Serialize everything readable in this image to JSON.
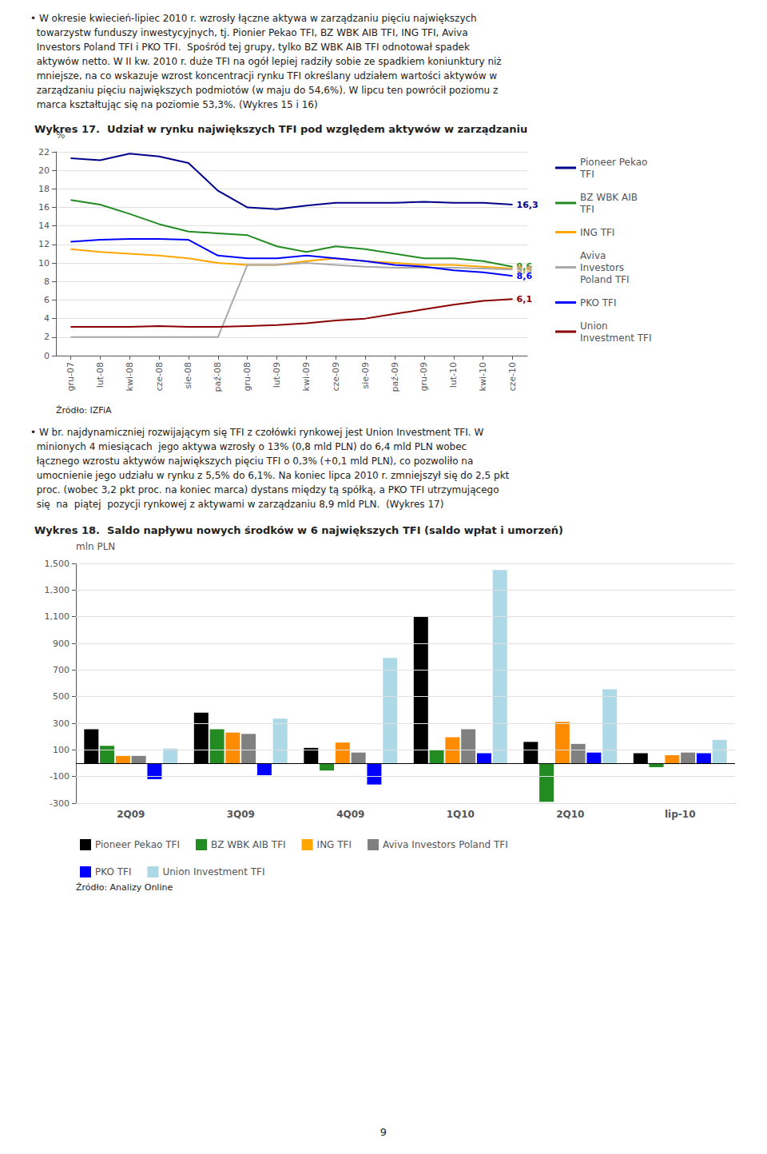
{
  "chart_data": [
    {
      "type": "line",
      "title": "Wykres 17.  Udział w rynku największych TFI pod względem aktywów w zarządzaniu",
      "ylabel": "%",
      "ylim": [
        0,
        22
      ],
      "yticks": [
        0,
        2,
        4,
        6,
        8,
        10,
        12,
        14,
        16,
        18,
        20,
        22
      ],
      "grid": true,
      "legend": "right",
      "categories": [
        "gru-07",
        "lut-08",
        "kwi-08",
        "cze-08",
        "sie-08",
        "paź-08",
        "gru-08",
        "lut-09",
        "kwi-09",
        "cze-09",
        "sie-09",
        "paź-09",
        "gru-09",
        "lut-10",
        "kwi-10",
        "cze-10"
      ],
      "series": [
        {
          "name": "Pioneer Pekao\nTFI",
          "color": "#00008B",
          "values": [
            21.3,
            21.1,
            21.8,
            21.5,
            20.8,
            17.8,
            16.0,
            15.8,
            16.2,
            16.5,
            16.5,
            16.5,
            16.6,
            16.5,
            16.5,
            16.3
          ],
          "value_labels": [
            null,
            null,
            null,
            null,
            null,
            null,
            null,
            null,
            null,
            null,
            null,
            null,
            null,
            null,
            null,
            "16,3"
          ]
        },
        {
          "name": "BZ WBK AIB\nTFI",
          "color": "#228B22",
          "values": [
            16.8,
            16.3,
            15.3,
            14.2,
            13.4,
            13.2,
            13.0,
            11.8,
            11.2,
            11.8,
            11.5,
            11.0,
            10.5,
            10.5,
            10.2,
            9.6
          ],
          "value_labels": [
            null,
            null,
            null,
            null,
            null,
            null,
            null,
            null,
            null,
            null,
            null,
            null,
            null,
            null,
            null,
            "9,6"
          ]
        },
        {
          "name": "ING TFI",
          "color": "#FFA500",
          "values": [
            11.5,
            11.2,
            11.0,
            10.8,
            10.5,
            10.0,
            9.8,
            9.8,
            10.2,
            10.5,
            10.2,
            10.0,
            9.8,
            9.8,
            9.6,
            9.4
          ],
          "value_labels": [
            null,
            null,
            null,
            null,
            null,
            null,
            null,
            null,
            null,
            null,
            null,
            null,
            null,
            null,
            null,
            "9,4"
          ]
        },
        {
          "name": "Aviva\nInvestors\nPoland TFI",
          "color": "#A9A9A9",
          "values": [
            2.0,
            2.0,
            2.0,
            2.0,
            2.0,
            2.0,
            9.8,
            9.8,
            10.0,
            9.8,
            9.6,
            9.5,
            9.5,
            9.5,
            9.4,
            9.3
          ],
          "value_labels": [
            null,
            null,
            null,
            null,
            null,
            null,
            null,
            null,
            null,
            null,
            null,
            null,
            null,
            null,
            null,
            "9,3"
          ]
        },
        {
          "name": "PKO TFI",
          "color": "#0000FF",
          "values": [
            12.3,
            12.5,
            12.6,
            12.6,
            12.5,
            10.8,
            10.5,
            10.5,
            10.8,
            10.5,
            10.2,
            9.8,
            9.6,
            9.2,
            9.0,
            8.6
          ],
          "value_labels": [
            null,
            null,
            null,
            null,
            null,
            null,
            null,
            null,
            null,
            null,
            null,
            null,
            null,
            null,
            null,
            "8,6"
          ]
        },
        {
          "name": "Union\nInvestment TFI",
          "color": "#8B0000",
          "values": [
            3.1,
            3.1,
            3.1,
            3.2,
            3.1,
            3.1,
            3.2,
            3.3,
            3.5,
            3.8,
            4.0,
            4.5,
            5.0,
            5.5,
            5.9,
            6.1
          ],
          "value_labels": [
            null,
            null,
            null,
            null,
            null,
            null,
            null,
            null,
            null,
            null,
            null,
            null,
            null,
            null,
            null,
            "6,1"
          ]
        }
      ],
      "annotations": [
        "• W okresie kwiecień-lipiec 2010 r. wzrosły łączne aktywa w zarządzaniu pięciu największych\n  towarzystw funduszy inwestycyjnych, tj. Pionier Pekao TFI, BZ WBK AIB TFI, ING TFI, Aviva\n  Investors Poland TFI i PKO TFI.  Spośród tej grupy, tylko BZ WBK AIB TFI odnotował spadek\n  aktywów netto. W II kw. 2010 r. duże TFI na ogół lepiej radziły sobie ze spadkiem koniunktury niż\n  mniejsze, na co wskazuje wzrost koncentracji rynku TFI określany udziałem wartości aktywów w\n  zarządzaniu pięciu największych podmiotów (w maju do 54,6%). W lipcu ten powrócił poziomu z\n  marca kształtując się na poziomie 53,3%. (Wykres 15 i 16)",
        "Źródło: IZFiA"
      ]
    },
    {
      "type": "bar",
      "title": "Wykres 18.  Saldo napływu nowych środków w 6 największych TFI (saldo wpłat i umorzeń)",
      "ylabel": "mln PLN",
      "ylim": [
        -300,
        1500
      ],
      "yticks": [
        -300,
        -100,
        100,
        300,
        500,
        700,
        900,
        1100,
        1300,
        1500
      ],
      "grid": true,
      "legend": "bottom",
      "categories": [
        "2Q09",
        "3Q09",
        "4Q09",
        "1Q10",
        "2Q10",
        "lip-10"
      ],
      "series": [
        {
          "name": "Pioneer Pekao TFI",
          "color": "#000000",
          "values": [
            255,
            380,
            115,
            1100,
            160,
            75
          ]
        },
        {
          "name": "BZ WBK AIB TFI",
          "color": "#228B22",
          "values": [
            130,
            255,
            -55,
            100,
            -290,
            -30
          ]
        },
        {
          "name": "ING TFI",
          "color": "#FF8C00",
          "values": [
            55,
            230,
            155,
            195,
            310,
            60
          ]
        },
        {
          "name": "Aviva Investors Poland TFI",
          "color": "#808080",
          "values": [
            55,
            220,
            80,
            255,
            145,
            80
          ]
        },
        {
          "name": "PKO TFI",
          "color": "#0000FF",
          "values": [
            -120,
            -90,
            -160,
            75,
            80,
            75
          ]
        },
        {
          "name": "Union Investment TFI",
          "color": "#ADD8E6",
          "values": [
            110,
            335,
            790,
            1450,
            555,
            175
          ]
        }
      ],
      "annotations": [
        "• W br. najdynamiczniej rozwijającym się TFI z czołówki rynkowej jest Union Investment TFI. W\n  minionych 4 miesiącach  jego aktywa wzrosły o 13% (0,8 mld PLN) do 6,4 mld PLN wobec\n  łącznego wzrostu aktywów największych pięciu TFI o 0,3% (+0,1 mld PLN), co pozwoliło na\n  umocnienie jego udziału w rynku z 5,5% do 6,1%. Na koniec lipca 2010 r. zmniejszył się do 2,5 pkt\n  proc. (wobec 3,2 pkt proc. na koniec marca) dystans między tą spółką, a PKO TFI utrzymującego\n  się  na  piątej  pozycji rynkowej z aktywami w zarządzaniu 8,9 mld PLN.  (Wykres 17)",
        "Źródło: Analizy Online",
        "9"
      ]
    }
  ]
}
